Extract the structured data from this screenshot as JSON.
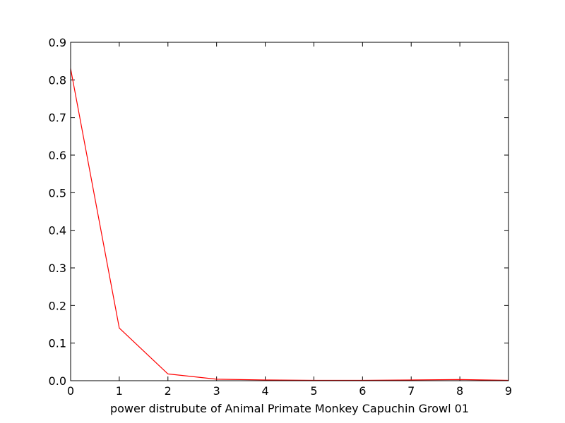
{
  "chart_data": {
    "type": "line",
    "title": "",
    "xlabel": "power distrubute of Animal Primate Monkey Capuchin Growl 01",
    "ylabel": "",
    "xlim": [
      0,
      9
    ],
    "ylim": [
      0,
      0.9
    ],
    "x_ticks": [
      0,
      1,
      2,
      3,
      4,
      5,
      6,
      7,
      8,
      9
    ],
    "x_tick_labels": [
      "0",
      "1",
      "2",
      "3",
      "4",
      "5",
      "6",
      "7",
      "8",
      "9"
    ],
    "y_ticks": [
      0,
      0.1,
      0.2,
      0.3,
      0.4,
      0.5,
      0.6,
      0.7,
      0.8,
      0.9
    ],
    "y_tick_labels": [
      "0.0",
      "0.1",
      "0.2",
      "0.3",
      "0.4",
      "0.5",
      "0.6",
      "0.7",
      "0.8",
      "0.9"
    ],
    "grid": false,
    "series": [
      {
        "color": "#ff0000",
        "x": [
          0,
          1,
          2,
          3,
          4,
          5,
          6,
          7,
          8,
          9
        ],
        "y": [
          0.83,
          0.14,
          0.018,
          0.004,
          0.002,
          0.001,
          0.001,
          0.002,
          0.003,
          0.001
        ]
      }
    ]
  }
}
